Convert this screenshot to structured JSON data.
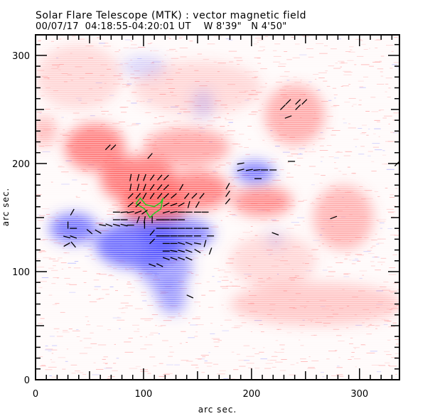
{
  "header": {
    "title": "Solar Flare Telescope (MTK) : vector magnetic field",
    "date": "00/07/17",
    "time_range": "04:18:55-04:20:01 UT",
    "position_w": "W 8'39\"",
    "position_n": "N 4'50\""
  },
  "chart_data": {
    "type": "heatmap",
    "title": "Solar Flare Telescope (MTK) : vector magnetic field",
    "xlabel": "arc sec.",
    "ylabel": "arc sec.",
    "xlim": [
      0,
      337
    ],
    "ylim": [
      0,
      319
    ],
    "x_ticks": [
      0,
      100,
      200,
      300
    ],
    "y_ticks": [
      0,
      100,
      200,
      300
    ],
    "x_tick_labels": [
      "0",
      "100",
      "200",
      "300"
    ],
    "y_tick_labels": [
      "0",
      "100",
      "200",
      "300"
    ],
    "minor_tick_step": 10,
    "colors": {
      "positive": "#ff5555",
      "negative": "#4a4aff",
      "contour": "#22cc22",
      "vector": "#000000"
    },
    "positive_regions": [
      {
        "x": 55,
        "y": 215,
        "rx": 28,
        "ry": 22,
        "strength": 0.85
      },
      {
        "x": 95,
        "y": 185,
        "rx": 35,
        "ry": 22,
        "strength": 0.9
      },
      {
        "x": 110,
        "y": 160,
        "rx": 30,
        "ry": 20,
        "strength": 1.0
      },
      {
        "x": 150,
        "y": 175,
        "rx": 30,
        "ry": 18,
        "strength": 0.85
      },
      {
        "x": 140,
        "y": 215,
        "rx": 40,
        "ry": 18,
        "strength": 0.6
      },
      {
        "x": 210,
        "y": 165,
        "rx": 28,
        "ry": 14,
        "strength": 0.75
      },
      {
        "x": 240,
        "y": 245,
        "rx": 28,
        "ry": 28,
        "strength": 0.55
      },
      {
        "x": 285,
        "y": 150,
        "rx": 28,
        "ry": 30,
        "strength": 0.5
      },
      {
        "x": 8,
        "y": 230,
        "rx": 12,
        "ry": 14,
        "strength": 0.45
      },
      {
        "x": 260,
        "y": 70,
        "rx": 80,
        "ry": 20,
        "strength": 0.35
      },
      {
        "x": 220,
        "y": 110,
        "rx": 40,
        "ry": 25,
        "strength": 0.25
      },
      {
        "x": 150,
        "y": 270,
        "rx": 60,
        "ry": 25,
        "strength": 0.25
      },
      {
        "x": 40,
        "y": 280,
        "rx": 40,
        "ry": 30,
        "strength": 0.25
      }
    ],
    "negative_regions": [
      {
        "x": 35,
        "y": 140,
        "rx": 22,
        "ry": 14,
        "strength": 0.85
      },
      {
        "x": 95,
        "y": 125,
        "rx": 40,
        "ry": 22,
        "strength": 0.9
      },
      {
        "x": 130,
        "y": 135,
        "rx": 35,
        "ry": 15,
        "strength": 0.8
      },
      {
        "x": 120,
        "y": 105,
        "rx": 25,
        "ry": 22,
        "strength": 0.6
      },
      {
        "x": 125,
        "y": 80,
        "rx": 16,
        "ry": 12,
        "strength": 0.5
      },
      {
        "x": 127,
        "y": 68,
        "rx": 12,
        "ry": 8,
        "strength": 0.45
      },
      {
        "x": 203,
        "y": 192,
        "rx": 18,
        "ry": 10,
        "strength": 0.85
      },
      {
        "x": 155,
        "y": 255,
        "rx": 10,
        "ry": 14,
        "strength": 0.25
      },
      {
        "x": 100,
        "y": 290,
        "rx": 20,
        "ry": 10,
        "strength": 0.25
      },
      {
        "x": 222,
        "y": 130,
        "rx": 8,
        "ry": 8,
        "strength": 0.2
      }
    ],
    "contour": [
      [
        93,
        163
      ],
      [
        97,
        168
      ],
      [
        102,
        162
      ],
      [
        110,
        160
      ],
      [
        116,
        164
      ],
      [
        118,
        168
      ],
      [
        116,
        158
      ],
      [
        110,
        154
      ],
      [
        106,
        150
      ],
      [
        101,
        158
      ],
      [
        93,
        163
      ]
    ],
    "vectors": [
      {
        "x": 67,
        "y": 215,
        "a": 45
      },
      {
        "x": 72,
        "y": 215,
        "a": 45
      },
      {
        "x": 106,
        "y": 207,
        "a": 50
      },
      {
        "x": 88,
        "y": 187,
        "a": 80
      },
      {
        "x": 95,
        "y": 187,
        "a": 75
      },
      {
        "x": 101,
        "y": 187,
        "a": 70
      },
      {
        "x": 108,
        "y": 187,
        "a": 55
      },
      {
        "x": 115,
        "y": 187,
        "a": 50
      },
      {
        "x": 121,
        "y": 187,
        "a": 45
      },
      {
        "x": 88,
        "y": 178,
        "a": 80
      },
      {
        "x": 95,
        "y": 178,
        "a": 75
      },
      {
        "x": 101,
        "y": 178,
        "a": 70
      },
      {
        "x": 108,
        "y": 178,
        "a": 55
      },
      {
        "x": 115,
        "y": 178,
        "a": 50
      },
      {
        "x": 121,
        "y": 178,
        "a": 45
      },
      {
        "x": 135,
        "y": 178,
        "a": 60
      },
      {
        "x": 88,
        "y": 170,
        "a": 45
      },
      {
        "x": 95,
        "y": 170,
        "a": 50
      },
      {
        "x": 101,
        "y": 170,
        "a": 60
      },
      {
        "x": 108,
        "y": 170,
        "a": 55
      },
      {
        "x": 115,
        "y": 170,
        "a": 50
      },
      {
        "x": 121,
        "y": 170,
        "a": 45
      },
      {
        "x": 128,
        "y": 170,
        "a": 40
      },
      {
        "x": 140,
        "y": 170,
        "a": 50
      },
      {
        "x": 147,
        "y": 170,
        "a": 45
      },
      {
        "x": 154,
        "y": 170,
        "a": 50
      },
      {
        "x": 88,
        "y": 162,
        "a": 40
      },
      {
        "x": 95,
        "y": 162,
        "a": 45
      },
      {
        "x": 121,
        "y": 162,
        "a": 30
      },
      {
        "x": 128,
        "y": 162,
        "a": 20
      },
      {
        "x": 135,
        "y": 162,
        "a": 30
      },
      {
        "x": 142,
        "y": 162,
        "a": 75
      },
      {
        "x": 150,
        "y": 162,
        "a": 60
      },
      {
        "x": 75,
        "y": 155,
        "a": 0
      },
      {
        "x": 82,
        "y": 155,
        "a": 5
      },
      {
        "x": 88,
        "y": 155,
        "a": 10
      },
      {
        "x": 95,
        "y": 155,
        "a": 20
      },
      {
        "x": 101,
        "y": 155,
        "a": 35
      },
      {
        "x": 121,
        "y": 155,
        "a": 15
      },
      {
        "x": 128,
        "y": 155,
        "a": 10
      },
      {
        "x": 135,
        "y": 155,
        "a": 0
      },
      {
        "x": 142,
        "y": 155,
        "a": 0
      },
      {
        "x": 150,
        "y": 155,
        "a": 0
      },
      {
        "x": 157,
        "y": 155,
        "a": 0
      },
      {
        "x": 75,
        "y": 148,
        "a": 0
      },
      {
        "x": 82,
        "y": 148,
        "a": 0
      },
      {
        "x": 95,
        "y": 148,
        "a": 70
      },
      {
        "x": 101,
        "y": 148,
        "a": 80
      },
      {
        "x": 108,
        "y": 148,
        "a": 90
      },
      {
        "x": 115,
        "y": 148,
        "a": 0
      },
      {
        "x": 121,
        "y": 148,
        "a": 0
      },
      {
        "x": 128,
        "y": 148,
        "a": 0
      },
      {
        "x": 135,
        "y": 148,
        "a": 0
      },
      {
        "x": 62,
        "y": 143,
        "a": -10
      },
      {
        "x": 68,
        "y": 143,
        "a": -20
      },
      {
        "x": 75,
        "y": 143,
        "a": -15
      },
      {
        "x": 82,
        "y": 143,
        "a": -15
      },
      {
        "x": 88,
        "y": 143,
        "a": 0
      },
      {
        "x": 101,
        "y": 143,
        "a": 90
      },
      {
        "x": 115,
        "y": 140,
        "a": 0
      },
      {
        "x": 121,
        "y": 140,
        "a": 0
      },
      {
        "x": 128,
        "y": 140,
        "a": 0
      },
      {
        "x": 135,
        "y": 140,
        "a": 0
      },
      {
        "x": 142,
        "y": 140,
        "a": 0
      },
      {
        "x": 150,
        "y": 140,
        "a": 0
      },
      {
        "x": 157,
        "y": 140,
        "a": 0
      },
      {
        "x": 108,
        "y": 136,
        "a": 50
      },
      {
        "x": 115,
        "y": 133,
        "a": 0
      },
      {
        "x": 121,
        "y": 133,
        "a": 0
      },
      {
        "x": 128,
        "y": 133,
        "a": 0
      },
      {
        "x": 135,
        "y": 133,
        "a": 0
      },
      {
        "x": 142,
        "y": 133,
        "a": 0
      },
      {
        "x": 150,
        "y": 133,
        "a": 0
      },
      {
        "x": 162,
        "y": 133,
        "a": 0
      },
      {
        "x": 108,
        "y": 128,
        "a": 45
      },
      {
        "x": 121,
        "y": 126,
        "a": 0
      },
      {
        "x": 128,
        "y": 126,
        "a": 0
      },
      {
        "x": 135,
        "y": 126,
        "a": -15
      },
      {
        "x": 142,
        "y": 126,
        "a": -20
      },
      {
        "x": 150,
        "y": 126,
        "a": -10
      },
      {
        "x": 157,
        "y": 126,
        "a": 75
      },
      {
        "x": 121,
        "y": 119,
        "a": 0
      },
      {
        "x": 128,
        "y": 119,
        "a": -10
      },
      {
        "x": 135,
        "y": 119,
        "a": -15
      },
      {
        "x": 142,
        "y": 119,
        "a": -20
      },
      {
        "x": 150,
        "y": 119,
        "a": -30
      },
      {
        "x": 162,
        "y": 119,
        "a": 70
      },
      {
        "x": 121,
        "y": 112,
        "a": -20
      },
      {
        "x": 128,
        "y": 112,
        "a": -20
      },
      {
        "x": 135,
        "y": 112,
        "a": -20
      },
      {
        "x": 142,
        "y": 112,
        "a": -25
      },
      {
        "x": 108,
        "y": 106,
        "a": -20
      },
      {
        "x": 115,
        "y": 106,
        "a": -25
      },
      {
        "x": 34,
        "y": 155,
        "a": 60
      },
      {
        "x": 30,
        "y": 143,
        "a": 90
      },
      {
        "x": 35,
        "y": 140,
        "a": 0
      },
      {
        "x": 29,
        "y": 132,
        "a": -15
      },
      {
        "x": 35,
        "y": 132,
        "a": -20
      },
      {
        "x": 29,
        "y": 125,
        "a": 30
      },
      {
        "x": 35,
        "y": 125,
        "a": -50
      },
      {
        "x": 50,
        "y": 137,
        "a": -40
      },
      {
        "x": 58,
        "y": 137,
        "a": -30
      },
      {
        "x": 143,
        "y": 77,
        "a": -25
      },
      {
        "x": 178,
        "y": 179,
        "a": 60
      },
      {
        "x": 178,
        "y": 172,
        "a": 55
      },
      {
        "x": 178,
        "y": 165,
        "a": 50
      },
      {
        "x": 190,
        "y": 200,
        "a": 10
      },
      {
        "x": 190,
        "y": 194,
        "a": 15
      },
      {
        "x": 198,
        "y": 194,
        "a": 10
      },
      {
        "x": 205,
        "y": 194,
        "a": 5
      },
      {
        "x": 212,
        "y": 194,
        "a": 0
      },
      {
        "x": 220,
        "y": 194,
        "a": 0
      },
      {
        "x": 206,
        "y": 186,
        "a": 0
      },
      {
        "x": 237,
        "y": 202,
        "a": 0
      },
      {
        "x": 229,
        "y": 252,
        "a": 45
      },
      {
        "x": 234,
        "y": 257,
        "a": 45
      },
      {
        "x": 243,
        "y": 257,
        "a": 45
      },
      {
        "x": 249,
        "y": 257,
        "a": 45
      },
      {
        "x": 243,
        "y": 252,
        "a": 45
      },
      {
        "x": 234,
        "y": 243,
        "a": 20
      },
      {
        "x": 276,
        "y": 150,
        "a": 20
      },
      {
        "x": 222,
        "y": 135,
        "a": -20
      },
      {
        "x": 335,
        "y": 200,
        "a": 45
      }
    ]
  }
}
